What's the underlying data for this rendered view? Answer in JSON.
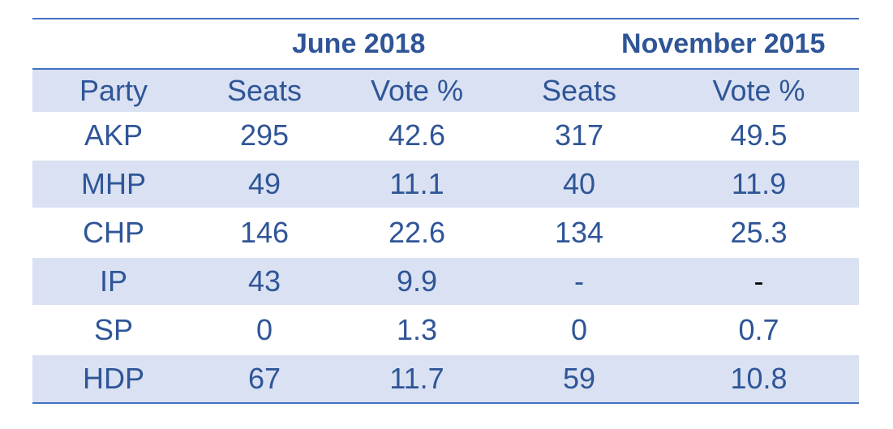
{
  "table": {
    "groups": {
      "june_2018": "June 2018",
      "november_2015": "November 2015"
    },
    "headers": {
      "party": "Party",
      "seats_2018": "Seats",
      "vote_2018": "Vote %",
      "seats_2015": "Seats",
      "vote_2015": "Vote %"
    },
    "rows": [
      {
        "party": "AKP",
        "seats_2018": "295",
        "vote_2018": "42.6",
        "seats_2015": "317",
        "vote_2015": "49.5"
      },
      {
        "party": "MHP",
        "seats_2018": "49",
        "vote_2018": "11.1",
        "seats_2015": "40",
        "vote_2015": "11.9"
      },
      {
        "party": "CHP",
        "seats_2018": "146",
        "vote_2018": "22.6",
        "seats_2015": "134",
        "vote_2015": "25.3"
      },
      {
        "party": "IP",
        "seats_2018": "43",
        "vote_2018": "9.9",
        "seats_2015": "-",
        "vote_2015": "-"
      },
      {
        "party": "SP",
        "seats_2018": "0",
        "vote_2018": "1.3",
        "seats_2015": "0",
        "vote_2015": "0.7"
      },
      {
        "party": "HDP",
        "seats_2018": "67",
        "vote_2018": "11.7",
        "seats_2015": "59",
        "vote_2015": "10.8"
      }
    ]
  },
  "colors": {
    "text": "#2f5597",
    "border": "#4472c4",
    "band": "#d9e1f2"
  }
}
